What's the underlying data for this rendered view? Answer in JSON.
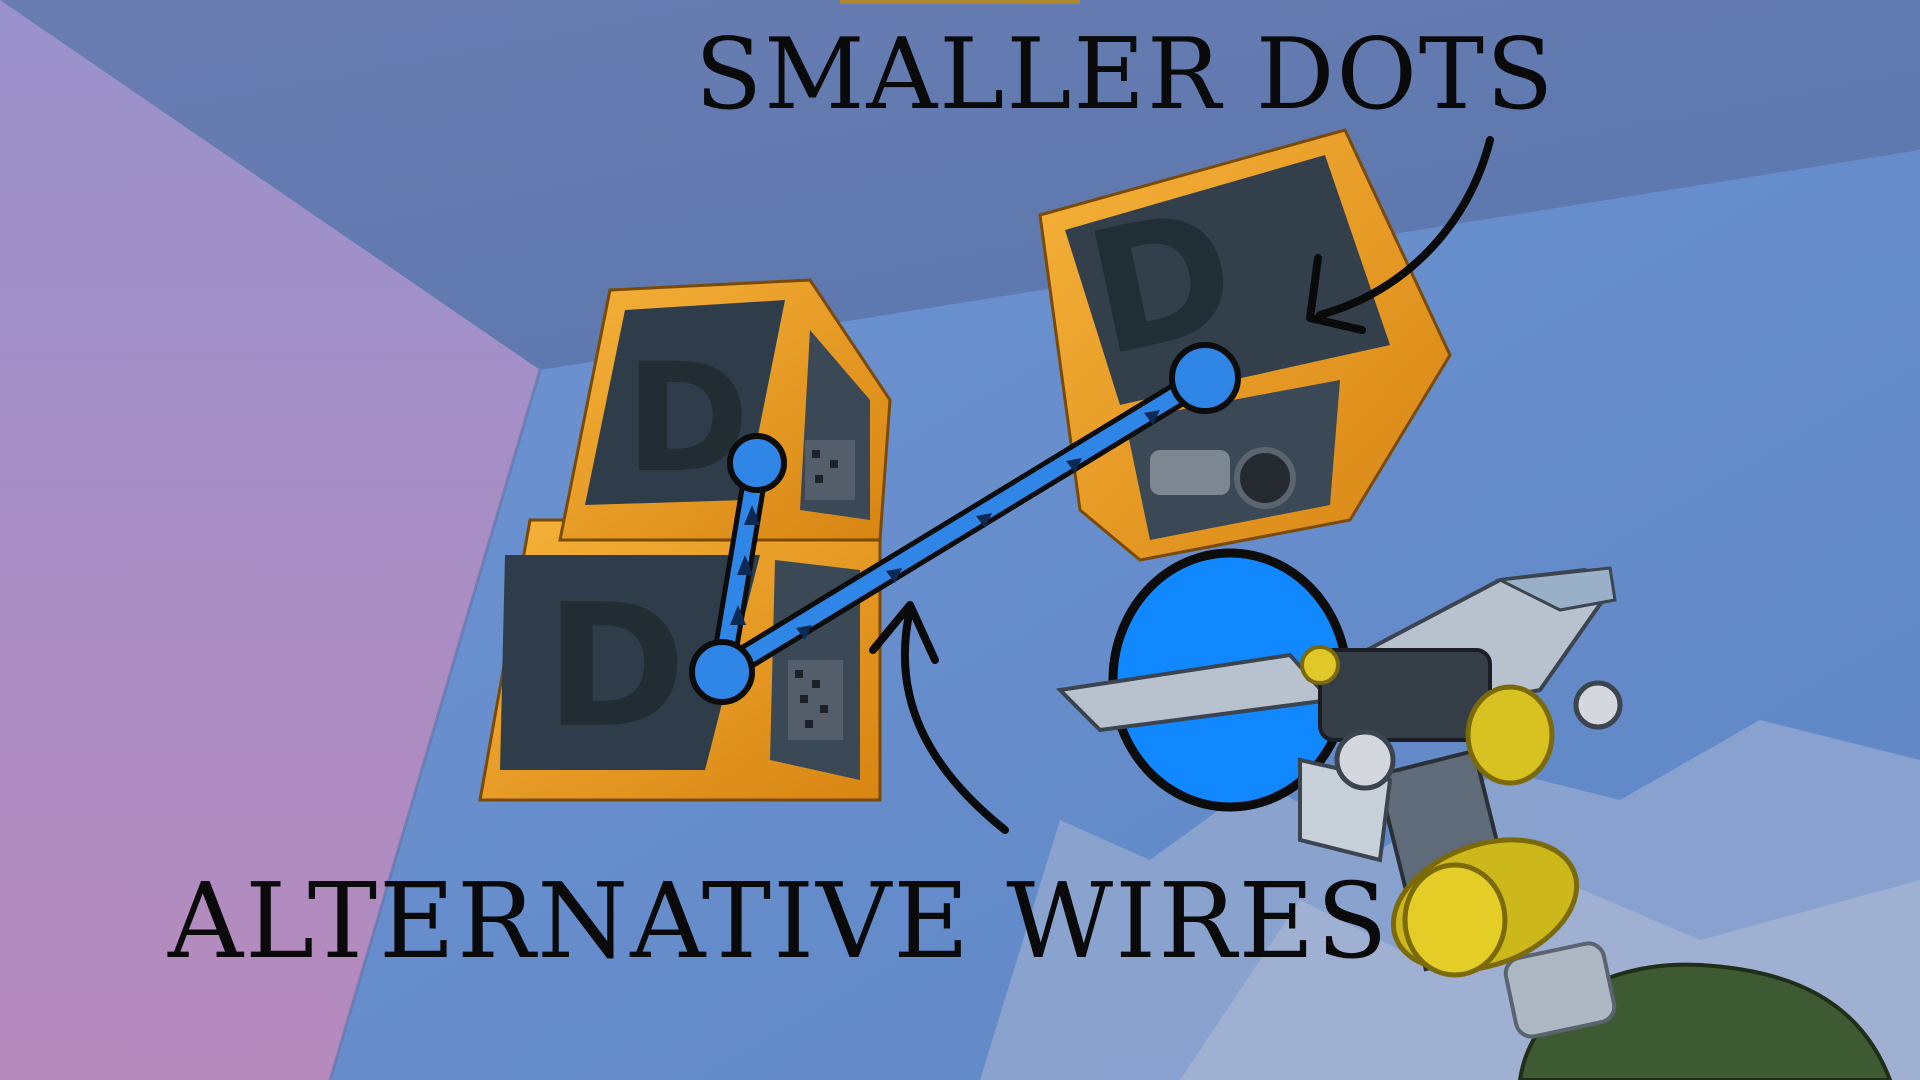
{
  "annotations": {
    "top_label": "SMALLER DOTS",
    "bottom_label": "ALTERNATIVE WIRES"
  },
  "scene": {
    "objects": [
      "logic-block-upper-left",
      "logic-block-lower-left",
      "logic-block-right",
      "connect-tool"
    ],
    "block_glyph": "D",
    "colors": {
      "sky": "#6f8fc4",
      "wall": "#6e90cc",
      "left_wall": "#9a8ec8",
      "ceiling": "#5d7fb4",
      "block_frame": "#f0a21e",
      "block_frame_dark": "#c47c10",
      "block_face": "#33404c",
      "wire": "#2f86e6",
      "dot": "#2f86e6",
      "target_dot": "#1188ff",
      "outline": "#0c0c0c",
      "tool_metal": "#b8c2cf",
      "tool_yellow": "#d9c21e",
      "glove": "#3e5a32"
    }
  }
}
